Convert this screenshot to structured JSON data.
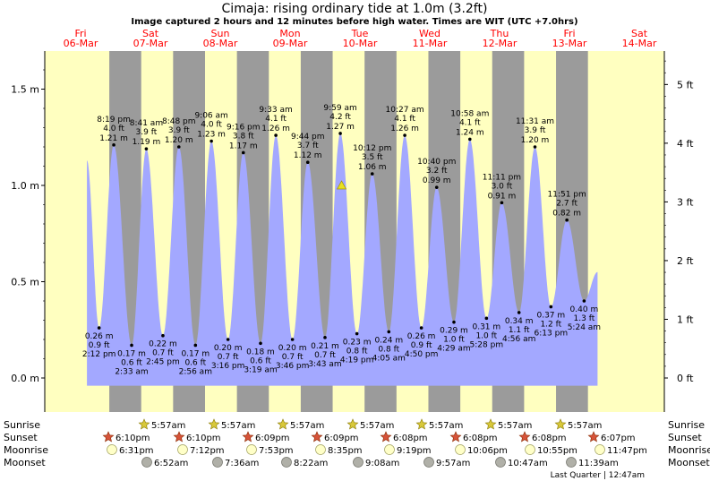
{
  "title": "Cimaja: rising  ordinary tide at 1.0m (3.2ft)",
  "subtitle": "Image captured 2 hours and 12 minutes before high water. Times are WIT (UTC +7.0hrs)",
  "colors": {
    "tide_fill": "#a3a8ff",
    "day_bg": "#ffffc0",
    "night_bg": "#9b9b9b",
    "day_label": "#ff0000",
    "marker": "#e8e020"
  },
  "chart_data": {
    "type": "area",
    "title": "Cimaja: rising  ordinary tide at 1.0m (3.2ft)",
    "y_left_ticks": [
      "0.0 m",
      "0.5 m",
      "1.0 m",
      "1.5 m"
    ],
    "y_right_ticks": [
      "0 ft",
      "1 ft",
      "2 ft",
      "3 ft",
      "4 ft",
      "5 ft"
    ],
    "ylim_m": [
      -0.05,
      1.7
    ],
    "xlim_days": [
      0.0,
      8.6
    ],
    "day_labels": [
      {
        "day": "Fri",
        "date": "06-Mar"
      },
      {
        "day": "Sat",
        "date": "07-Mar"
      },
      {
        "day": "Sun",
        "date": "08-Mar"
      },
      {
        "day": "Mon",
        "date": "09-Mar"
      },
      {
        "day": "Tue",
        "date": "10-Mar"
      },
      {
        "day": "Wed",
        "date": "11-Mar"
      },
      {
        "day": "Thu",
        "date": "12-Mar"
      },
      {
        "day": "Fri",
        "date": "13-Mar"
      },
      {
        "day": "Sat",
        "date": "14-Mar"
      }
    ],
    "night_bands_days": [
      [
        0.45,
        0.95
      ],
      [
        1.45,
        1.95
      ],
      [
        2.45,
        2.95
      ],
      [
        3.45,
        3.95
      ],
      [
        4.45,
        4.95
      ],
      [
        5.45,
        5.95
      ],
      [
        6.45,
        6.95
      ],
      [
        7.45,
        7.95
      ]
    ],
    "current_marker": {
      "t": 4.09,
      "height_m": 1.0
    },
    "extrema": [
      {
        "t": 0.1,
        "type": "high",
        "h_m": 1.13,
        "time": "",
        "ft": "",
        "m": ""
      },
      {
        "t": 0.29,
        "type": "low",
        "h_m": 0.26,
        "time": "2:12 pm",
        "ft": "0.9 ft",
        "m": "0.26 m"
      },
      {
        "t": 0.52,
        "type": "high",
        "h_m": 1.21,
        "time": "8:19 pm",
        "ft": "4.0 ft",
        "m": "1.21 m"
      },
      {
        "t": 0.8,
        "type": "low",
        "h_m": 0.17,
        "time": "2:33 am",
        "ft": "0.6 ft",
        "m": "0.17 m"
      },
      {
        "t": 1.03,
        "type": "high",
        "h_m": 1.19,
        "time": "8:41 am",
        "ft": "3.9 ft",
        "m": "1.19 m"
      },
      {
        "t": 1.29,
        "type": "low",
        "h_m": 0.22,
        "time": "2:45 pm",
        "ft": "0.7 ft",
        "m": "0.22 m"
      },
      {
        "t": 1.54,
        "type": "high",
        "h_m": 1.2,
        "time": "8:48 pm",
        "ft": "3.9 ft",
        "m": "1.20 m"
      },
      {
        "t": 1.8,
        "type": "low",
        "h_m": 0.17,
        "time": "2:56 am",
        "ft": "0.6 ft",
        "m": "0.17 m"
      },
      {
        "t": 2.05,
        "type": "high",
        "h_m": 1.23,
        "time": "9:06 am",
        "ft": "4.0 ft",
        "m": "1.23 m"
      },
      {
        "t": 2.31,
        "type": "low",
        "h_m": 0.2,
        "time": "3:16 pm",
        "ft": "0.7 ft",
        "m": "0.20 m"
      },
      {
        "t": 2.55,
        "type": "high",
        "h_m": 1.17,
        "time": "9:16 pm",
        "ft": "3.8 ft",
        "m": "1.17 m"
      },
      {
        "t": 2.82,
        "type": "low",
        "h_m": 0.18,
        "time": "3:19 am",
        "ft": "0.6 ft",
        "m": "0.18 m"
      },
      {
        "t": 3.06,
        "type": "high",
        "h_m": 1.26,
        "time": "9:33 am",
        "ft": "4.1 ft",
        "m": "1.26 m"
      },
      {
        "t": 3.32,
        "type": "low",
        "h_m": 0.2,
        "time": "3:46 pm",
        "ft": "0.7 ft",
        "m": "0.20 m"
      },
      {
        "t": 3.56,
        "type": "high",
        "h_m": 1.12,
        "time": "9:44 pm",
        "ft": "3.7 ft",
        "m": "1.12 m"
      },
      {
        "t": 3.83,
        "type": "low",
        "h_m": 0.21,
        "time": "3:43 am",
        "ft": "0.7 ft",
        "m": "0.21 m"
      },
      {
        "t": 4.07,
        "type": "high",
        "h_m": 1.27,
        "time": "9:59 am",
        "ft": "4.2 ft",
        "m": "1.27 m"
      },
      {
        "t": 4.33,
        "type": "low",
        "h_m": 0.23,
        "time": "4:19 pm",
        "ft": "0.8 ft",
        "m": "0.23 m"
      },
      {
        "t": 4.57,
        "type": "high",
        "h_m": 1.06,
        "time": "10:12 pm",
        "ft": "3.5 ft",
        "m": "1.06 m"
      },
      {
        "t": 4.83,
        "type": "low",
        "h_m": 0.24,
        "time": "4:05 am",
        "ft": "0.8 ft",
        "m": "0.24 m"
      },
      {
        "t": 5.08,
        "type": "high",
        "h_m": 1.26,
        "time": "10:27 am",
        "ft": "4.1 ft",
        "m": "1.26 m"
      },
      {
        "t": 5.34,
        "type": "low",
        "h_m": 0.26,
        "time": "4:50 pm",
        "ft": "0.9 ft",
        "m": "0.26 m"
      },
      {
        "t": 5.58,
        "type": "high",
        "h_m": 0.99,
        "time": "10:40 pm",
        "ft": "3.2 ft",
        "m": "0.99 m"
      },
      {
        "t": 5.85,
        "type": "low",
        "h_m": 0.29,
        "time": "4:29 am",
        "ft": "1.0 ft",
        "m": "0.29 m"
      },
      {
        "t": 6.1,
        "type": "high",
        "h_m": 1.24,
        "time": "10:58 am",
        "ft": "4.1 ft",
        "m": "1.24 m"
      },
      {
        "t": 6.36,
        "type": "low",
        "h_m": 0.31,
        "time": "5:28 pm",
        "ft": "1.0 ft",
        "m": "0.31 m"
      },
      {
        "t": 6.6,
        "type": "high",
        "h_m": 0.91,
        "time": "11:11 pm",
        "ft": "3.0 ft",
        "m": "0.91 m"
      },
      {
        "t": 6.87,
        "type": "low",
        "h_m": 0.34,
        "time": "4:56 am",
        "ft": "1.1 ft",
        "m": "0.34 m"
      },
      {
        "t": 7.12,
        "type": "high",
        "h_m": 1.2,
        "time": "11:31 am",
        "ft": "3.9 ft",
        "m": "1.20 m"
      },
      {
        "t": 7.37,
        "type": "low",
        "h_m": 0.37,
        "time": "6:13 pm",
        "ft": "1.2 ft",
        "m": "0.37 m"
      },
      {
        "t": 7.62,
        "type": "high",
        "h_m": 0.82,
        "time": "11:51 pm",
        "ft": "2.7 ft",
        "m": "0.82 m"
      },
      {
        "t": 7.89,
        "type": "low",
        "h_m": 0.4,
        "time": "5:24 am",
        "ft": "1.3 ft",
        "m": "0.40 m"
      },
      {
        "t": 8.1,
        "type": "high",
        "h_m": 0.55,
        "time": "",
        "ft": "",
        "m": ""
      }
    ]
  },
  "almanac": {
    "row_labels": {
      "sunrise": "Sunrise",
      "sunset": "Sunset",
      "moonrise": "Moonrise",
      "moonset": "Moonset"
    },
    "sunrise": [
      {
        "t": 1.0,
        "time": "5:57am"
      },
      {
        "t": 2.0,
        "time": "5:57am"
      },
      {
        "t": 3.0,
        "time": "5:57am"
      },
      {
        "t": 4.0,
        "time": "5:57am"
      },
      {
        "t": 5.0,
        "time": "5:57am"
      },
      {
        "t": 6.0,
        "time": "5:57am"
      },
      {
        "t": 7.0,
        "time": "5:57am"
      }
    ],
    "sunset": [
      {
        "t": 0.5,
        "time": "6:10pm"
      },
      {
        "t": 1.5,
        "time": "6:10pm"
      },
      {
        "t": 2.5,
        "time": "6:09pm"
      },
      {
        "t": 3.5,
        "time": "6:09pm"
      },
      {
        "t": 4.5,
        "time": "6:08pm"
      },
      {
        "t": 5.5,
        "time": "6:08pm"
      },
      {
        "t": 6.5,
        "time": "6:08pm"
      },
      {
        "t": 7.5,
        "time": "6:07pm"
      }
    ],
    "moonrise": [
      {
        "t": 0.5,
        "time": "6:31pm"
      },
      {
        "t": 1.5,
        "time": "7:12pm"
      },
      {
        "t": 2.5,
        "time": "7:53pm"
      },
      {
        "t": 3.5,
        "time": "8:35pm"
      },
      {
        "t": 4.5,
        "time": "9:19pm"
      },
      {
        "t": 5.5,
        "time": "10:06pm"
      },
      {
        "t": 6.5,
        "time": "10:55pm"
      },
      {
        "t": 7.5,
        "time": "11:47pm"
      }
    ],
    "moonset": [
      {
        "t": 1.0,
        "time": "6:52am"
      },
      {
        "t": 2.0,
        "time": "7:36am"
      },
      {
        "t": 3.0,
        "time": "8:22am"
      },
      {
        "t": 4.0,
        "time": "9:08am"
      },
      {
        "t": 5.0,
        "time": "9:57am"
      },
      {
        "t": 6.0,
        "time": "10:47am"
      },
      {
        "t": 7.0,
        "time": "11:39am"
      }
    ],
    "moon_phase": "Last Quarter | 12:47am"
  }
}
